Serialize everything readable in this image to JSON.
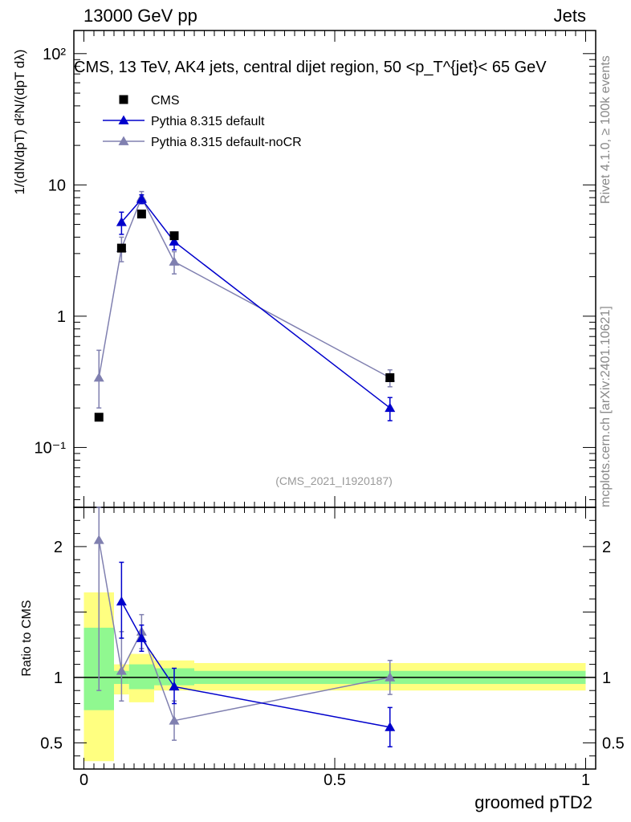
{
  "header": {
    "left": "13000 GeV pp",
    "right": "Jets"
  },
  "side_labels": {
    "rivet": "Rivet 4.1.0, ≥ 100k events",
    "mcplots": "mcplots.cern.ch [arXiv:2401.10621]"
  },
  "chart_data": [
    {
      "type": "scatter",
      "panel": "main",
      "title": "CMS, 13 TeV, AK4 jets, central dijet region, 50 <p_T^{jet}< 65 GeV",
      "ylabel": "1/(dN/dpT) d²N/(dpT dλ)",
      "yscale": "log",
      "ylim": [
        0.035,
        150
      ],
      "xlim": [
        -0.02,
        1.02
      ],
      "watermark": "(CMS_2021_I1920187)",
      "ytick_labels": [
        "10⁻¹",
        "1",
        "10",
        "10²"
      ],
      "legend_position": "top-left",
      "series": [
        {
          "name": "CMS",
          "color": "#000000",
          "marker": "square",
          "x": [
            0.03,
            0.075,
            0.115,
            0.18,
            0.61
          ],
          "y": [
            0.17,
            3.3,
            6.0,
            4.1,
            0.34
          ]
        },
        {
          "name": "Pythia 8.315 default",
          "color": "#0000cc",
          "marker": "triangle",
          "x": [
            0.075,
            0.115,
            0.18,
            0.61
          ],
          "y": [
            5.2,
            7.8,
            3.7,
            0.2
          ],
          "err_lo": [
            4.2,
            7.2,
            3.2,
            0.16
          ],
          "err_hi": [
            6.2,
            8.4,
            4.2,
            0.24
          ]
        },
        {
          "name": "Pythia 8.315 default-noCR",
          "color": "#8080b0",
          "marker": "triangle",
          "x": [
            0.03,
            0.075,
            0.115,
            0.18,
            0.61
          ],
          "y": [
            0.34,
            3.3,
            8.0,
            2.6,
            0.34
          ],
          "err_lo": [
            0.2,
            2.6,
            7.2,
            2.1,
            0.29
          ],
          "err_hi": [
            0.55,
            4.0,
            8.9,
            3.1,
            0.39
          ]
        }
      ]
    },
    {
      "type": "scatter",
      "panel": "ratio",
      "ylabel": "Ratio to CMS",
      "xlabel": "groomed pTD2",
      "ylim": [
        0.3,
        2.3
      ],
      "xlim": [
        -0.02,
        1.02
      ],
      "xtick_labels": [
        "0",
        "0.5",
        "1"
      ],
      "ytick_labels": [
        "0.5",
        "1",
        "2"
      ],
      "bands": [
        {
          "x0": 0.0,
          "x1": 0.06,
          "inner": [
            0.75,
            1.38
          ],
          "outer": [
            0.36,
            1.65
          ]
        },
        {
          "x0": 0.06,
          "x1": 0.09,
          "inner": [
            0.95,
            1.05
          ],
          "outer": [
            0.87,
            1.1
          ]
        },
        {
          "x0": 0.09,
          "x1": 0.14,
          "inner": [
            0.91,
            1.1
          ],
          "outer": [
            0.81,
            1.18
          ]
        },
        {
          "x0": 0.14,
          "x1": 0.22,
          "inner": [
            0.94,
            1.07
          ],
          "outer": [
            0.9,
            1.13
          ]
        },
        {
          "x0": 0.22,
          "x1": 1.0,
          "inner": [
            0.95,
            1.05
          ],
          "outer": [
            0.9,
            1.11
          ]
        }
      ],
      "series": [
        {
          "name": "Pythia 8.315 default",
          "color": "#0000cc",
          "marker": "triangle",
          "x": [
            0.075,
            0.115,
            0.18,
            0.61
          ],
          "y": [
            1.58,
            1.3,
            0.93,
            0.62
          ],
          "err_lo": [
            1.3,
            1.2,
            0.8,
            0.47
          ],
          "err_hi": [
            1.88,
            1.4,
            1.07,
            0.77
          ]
        },
        {
          "name": "Pythia 8.315 default-noCR",
          "color": "#8080b0",
          "marker": "triangle",
          "x": [
            0.03,
            0.075,
            0.115,
            0.18,
            0.61
          ],
          "y": [
            2.05,
            1.05,
            1.35,
            0.67,
            1.0
          ],
          "err_lo": [
            0.9,
            0.82,
            1.22,
            0.52,
            0.87
          ],
          "err_hi": [
            2.3,
            1.35,
            1.48,
            0.82,
            1.13
          ]
        }
      ]
    }
  ]
}
